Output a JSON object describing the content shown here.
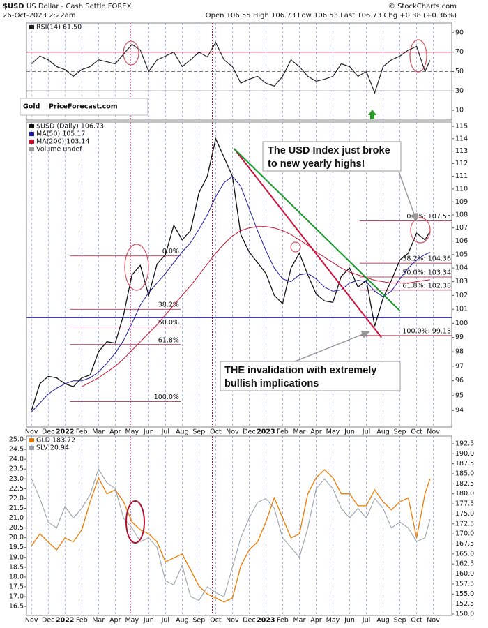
{
  "header": {
    "symbol": "$USD",
    "title": "US Dollar - Cash Settle FOREX",
    "date": "26-Oct-2023 2:22am",
    "quote": "Open 106.55 High 106.73 Low 106.53 Last 106.73 Chg +0.38 (+0.36%)",
    "credit": "© StockCharts.com"
  },
  "logo": {
    "gold": "Gold",
    "rest": "PriceForecast.com"
  },
  "chart_data": [
    {
      "type": "line",
      "yaxis_side": "right",
      "x": [
        0,
        0.5,
        1,
        1.5,
        2,
        2.5,
        3,
        3.5,
        4,
        4.5,
        5,
        5.5,
        6,
        6.5,
        7,
        7.5,
        8,
        8.5,
        9,
        9.5,
        10,
        10.5,
        11,
        11.5,
        12,
        12.5,
        13,
        13.5,
        14,
        14.5,
        15,
        15.5,
        16,
        16.5,
        17,
        17.5,
        18,
        18.5,
        19,
        19.5,
        20,
        20.5,
        21,
        21.5,
        22,
        22.5,
        23,
        23.5,
        23.8
      ],
      "xlim": [
        -0.3,
        25.1
      ],
      "ylim": [
        0,
        100
      ],
      "yticks": [
        10,
        30,
        50,
        70,
        90
      ],
      "levels": [
        70,
        50,
        30
      ],
      "series": [
        {
          "name": "RSI(14) 61.50",
          "color": "#222222",
          "values": [
            58,
            66,
            62,
            55,
            52,
            45,
            52,
            55,
            62,
            60,
            58,
            68,
            78,
            72,
            50,
            62,
            66,
            70,
            55,
            62,
            70,
            65,
            80,
            62,
            55,
            38,
            42,
            45,
            38,
            35,
            45,
            62,
            55,
            45,
            40,
            42,
            45,
            58,
            55,
            45,
            50,
            28,
            55,
            62,
            66,
            72,
            76,
            50,
            61.5
          ]
        }
      ]
    },
    {
      "type": "line",
      "log": true,
      "yaxis_side": "right",
      "x": [
        0,
        0.5,
        1,
        1.5,
        2,
        2.5,
        3,
        3.5,
        4,
        4.5,
        5,
        5.5,
        6,
        6.5,
        7,
        7.5,
        8,
        8.5,
        9,
        9.5,
        10,
        10.5,
        11,
        11.5,
        12,
        12.5,
        13,
        13.5,
        14,
        14.5,
        15,
        15.5,
        16,
        16.5,
        17,
        17.5,
        18,
        18.5,
        19,
        19.5,
        20,
        20.5,
        21,
        21.5,
        22,
        22.5,
        23,
        23.5,
        23.8
      ],
      "xlim": [
        -0.3,
        25.1
      ],
      "ylim": [
        92.9,
        115.35
      ],
      "yticks": [
        94,
        95,
        96,
        97,
        98,
        99,
        100,
        101,
        102,
        103,
        104,
        105,
        106,
        107,
        108,
        109,
        110,
        111,
        112,
        113,
        114,
        115
      ],
      "xticks": [
        {
          "value": 0,
          "label": "Nov"
        },
        {
          "value": 1,
          "label": "Dec"
        },
        {
          "value": 2,
          "label": "2022"
        },
        {
          "value": 3,
          "label": "Feb"
        },
        {
          "value": 4,
          "label": "Mar"
        },
        {
          "value": 5,
          "label": "Apr"
        },
        {
          "value": 6,
          "label": "May"
        },
        {
          "value": 7,
          "label": "Jun"
        },
        {
          "value": 8,
          "label": "Jul"
        },
        {
          "value": 9,
          "label": "Aug"
        },
        {
          "value": 10,
          "label": "Sep"
        },
        {
          "value": 11,
          "label": "Oct"
        },
        {
          "value": 12,
          "label": "Nov"
        },
        {
          "value": 13,
          "label": "Dec"
        },
        {
          "value": 14,
          "label": "2023"
        },
        {
          "value": 15,
          "label": "Feb"
        },
        {
          "value": 16,
          "label": "Mar"
        },
        {
          "value": 17,
          "label": "Apr"
        },
        {
          "value": 18,
          "label": "May"
        },
        {
          "value": 19,
          "label": "Jun"
        },
        {
          "value": 20,
          "label": "Jul"
        },
        {
          "value": 21,
          "label": "Aug"
        },
        {
          "value": 22,
          "label": "Sep"
        },
        {
          "value": 23,
          "label": "Oct"
        },
        {
          "value": 24,
          "label": "Nov"
        }
      ],
      "series": [
        {
          "name": "$USD (Daily) 106.73",
          "color": "#111111",
          "width": 1.3,
          "values": [
            94.0,
            95.8,
            96.3,
            96.2,
            95.8,
            95.6,
            96.2,
            96.4,
            98.0,
            98.7,
            98.6,
            100.6,
            103.5,
            104.2,
            102.0,
            104.3,
            105.0,
            107.2,
            106.1,
            106.8,
            109.7,
            111.0,
            114.0,
            112.5,
            111.0,
            106.5,
            105.2,
            104.4,
            103.6,
            102.0,
            101.4,
            104.0,
            105.1,
            103.5,
            102.1,
            101.6,
            101.5,
            103.4,
            104.0,
            102.6,
            103.1,
            99.8,
            101.8,
            103.1,
            104.6,
            105.1,
            106.6,
            106.1,
            106.73
          ]
        },
        {
          "name": "MA(50) 105.17",
          "color": "#1a1aa0",
          "width": 1,
          "values": [
            93.9,
            94.5,
            95.1,
            95.5,
            95.8,
            96.0,
            96.0,
            96.2,
            96.6,
            97.2,
            97.9,
            98.8,
            100.0,
            101.3,
            102.2,
            102.9,
            103.6,
            104.4,
            105.2,
            105.9,
            106.9,
            108.0,
            109.4,
            110.5,
            111.0,
            110.2,
            108.5,
            106.8,
            105.3,
            104.0,
            103.2,
            103.0,
            103.5,
            103.6,
            103.2,
            102.6,
            102.3,
            102.4,
            102.9,
            103.1,
            103.0,
            102.3,
            101.9,
            102.3,
            103.2,
            104.0,
            104.6,
            105.0,
            105.17
          ]
        },
        {
          "name": "MA(200) 103.14",
          "color": "#c8102e",
          "width": 1,
          "values": [
            null,
            null,
            null,
            null,
            null,
            null,
            95.6,
            95.9,
            96.2,
            96.6,
            97.0,
            97.5,
            98.1,
            98.7,
            99.3,
            99.9,
            100.6,
            101.3,
            102.0,
            102.7,
            103.5,
            104.3,
            105.1,
            105.8,
            106.4,
            106.8,
            107.0,
            107.1,
            107.1,
            107.0,
            106.8,
            106.5,
            106.1,
            105.7,
            105.2,
            104.8,
            104.4,
            104.0,
            103.7,
            103.5,
            103.3,
            103.1,
            103.0,
            102.9,
            102.9,
            102.9,
            103.0,
            103.1,
            103.14
          ]
        }
      ],
      "extra_legend": "Volume undef",
      "hline": {
        "value": 100.4,
        "color": "#0000aa"
      },
      "trendlines": [
        {
          "color": "#d0103a",
          "x": [
            12.1,
            20.9
          ],
          "y": [
            113.2,
            99.0
          ]
        },
        {
          "color": "#119a2a",
          "x": [
            12.1,
            22.0
          ],
          "y": [
            113.2,
            100.9
          ]
        }
      ],
      "fib_left": {
        "start": 2.3,
        "end": 8.9,
        "levels": [
          104.9,
          101.0,
          99.75,
          98.5,
          94.6
        ],
        "labels": [
          "0.0%",
          "38.2%",
          "50.0%",
          "61.8%",
          "100.0%"
        ]
      },
      "fib_right": {
        "start": 19.6,
        "levels": [
          {
            "value": 107.55,
            "label": "0.0%: 107.55"
          },
          {
            "value": 104.36,
            "label": "38.2%: 104.36"
          },
          {
            "value": 103.34,
            "label": "50.0%: 103.34"
          },
          {
            "value": 102.38,
            "label": "61.8%: 102.38"
          },
          {
            "value": 99.13,
            "label": "100.0%: 99.13"
          }
        ]
      },
      "annotations": [
        [
          "The USD Index just broke",
          "to new yearly highs!"
        ],
        [
          "THE invalidation with extremely",
          "bullish implications"
        ]
      ]
    },
    {
      "type": "line",
      "yaxis_side": "left",
      "x": [
        0,
        0.5,
        1,
        1.5,
        2,
        2.5,
        3,
        3.5,
        4,
        4.5,
        5,
        5.5,
        6,
        6.5,
        7,
        7.5,
        8,
        8.5,
        9,
        9.5,
        10,
        10.5,
        11,
        11.5,
        12,
        12.5,
        13,
        13.5,
        14,
        14.5,
        15,
        15.5,
        16,
        16.5,
        17,
        17.5,
        18,
        18.5,
        19,
        19.5,
        20,
        20.5,
        21,
        21.5,
        22,
        22.5,
        23,
        23.5,
        23.8
      ],
      "xlim": [
        -0.3,
        25.1
      ],
      "ylim": [
        16.04,
        25.18
      ],
      "y2lim": [
        149.65,
        194.4
      ],
      "yticks": [
        16.5,
        {
          "value": 17,
          "label": "17.0"
        },
        17.5,
        {
          "value": 18,
          "label": "18.0"
        },
        18.5,
        {
          "value": 19,
          "label": "19.0"
        },
        19.5,
        {
          "value": 20,
          "label": "20.0"
        },
        20.5,
        {
          "value": 21,
          "label": "21.0"
        },
        21.5,
        {
          "value": 22,
          "label": "22.0"
        },
        22.5,
        {
          "value": 23,
          "label": "23.0"
        },
        23.5,
        {
          "value": 24,
          "label": "24.0"
        },
        24.5,
        {
          "value": 25,
          "label": "25.0"
        }
      ],
      "y2ticks": [
        {
          "value": 150,
          "label": "150.0"
        },
        152.5,
        {
          "value": 155,
          "label": "155.0"
        },
        157.5,
        {
          "value": 160,
          "label": "160.0"
        },
        162.5,
        {
          "value": 165,
          "label": "165.0"
        },
        167.5,
        {
          "value": 170,
          "label": "170.0"
        },
        172.5,
        {
          "value": 175,
          "label": "175.0"
        },
        177.5,
        {
          "value": 180,
          "label": "180.0"
        },
        182.5,
        {
          "value": 185,
          "label": "185.0"
        },
        187.5,
        {
          "value": 190,
          "label": "190.0"
        },
        192.5
      ],
      "xticks": [
        {
          "value": 0,
          "label": "Nov"
        },
        {
          "value": 1,
          "label": "Dec"
        },
        {
          "value": 2,
          "label": "2022"
        },
        {
          "value": 3,
          "label": "Feb"
        },
        {
          "value": 4,
          "label": "Mar"
        },
        {
          "value": 5,
          "label": "Apr"
        },
        {
          "value": 6,
          "label": "May"
        },
        {
          "value": 7,
          "label": "Jun"
        },
        {
          "value": 8,
          "label": "Jul"
        },
        {
          "value": 9,
          "label": "Aug"
        },
        {
          "value": 10,
          "label": "Sep"
        },
        {
          "value": 11,
          "label": "Oct"
        },
        {
          "value": 12,
          "label": "Nov"
        },
        {
          "value": 13,
          "label": "Dec"
        },
        {
          "value": 14,
          "label": "2023"
        },
        {
          "value": 15,
          "label": "Feb"
        },
        {
          "value": 16,
          "label": "Mar"
        },
        {
          "value": 17,
          "label": "Apr"
        },
        {
          "value": 18,
          "label": "May"
        },
        {
          "value": 19,
          "label": "Jun"
        },
        {
          "value": 20,
          "label": "Jul"
        },
        {
          "value": 21,
          "label": "Aug"
        },
        {
          "value": 22,
          "label": "Sep"
        },
        {
          "value": 23,
          "label": "Oct"
        },
        {
          "value": 24,
          "label": "Nov"
        }
      ],
      "series": [
        {
          "name": "GLD 183.72",
          "color": "#f07800",
          "axis": "y2",
          "width": 1.3,
          "values": [
            167,
            170,
            168,
            166,
            169,
            168,
            171,
            178,
            184,
            180,
            181,
            178,
            173,
            171,
            170,
            168,
            163,
            164,
            165,
            161,
            157,
            155,
            154,
            153,
            154,
            162,
            166,
            168,
            173,
            179,
            174,
            169,
            170,
            180,
            184,
            186,
            184,
            180,
            180,
            177,
            177,
            181,
            178,
            176,
            178,
            179,
            169,
            180,
            183.72
          ]
        },
        {
          "name": "SLV 20.94",
          "color": "#9aa3ab",
          "width": 1.1,
          "values": [
            23.0,
            22.0,
            20.8,
            20.5,
            21.6,
            21.0,
            21.5,
            22.2,
            23.5,
            22.8,
            22.5,
            21.0,
            20.5,
            19.8,
            20.0,
            19.5,
            17.8,
            17.6,
            18.6,
            17.0,
            16.8,
            17.5,
            17.2,
            17.0,
            18.5,
            20.0,
            21.0,
            21.8,
            22.0,
            21.5,
            20.0,
            19.5,
            19.0,
            20.5,
            22.5,
            23.0,
            22.5,
            21.5,
            21.0,
            21.5,
            21.0,
            22.0,
            21.5,
            20.5,
            20.8,
            20.5,
            19.8,
            20.0,
            20.94
          ]
        }
      ]
    }
  ]
}
